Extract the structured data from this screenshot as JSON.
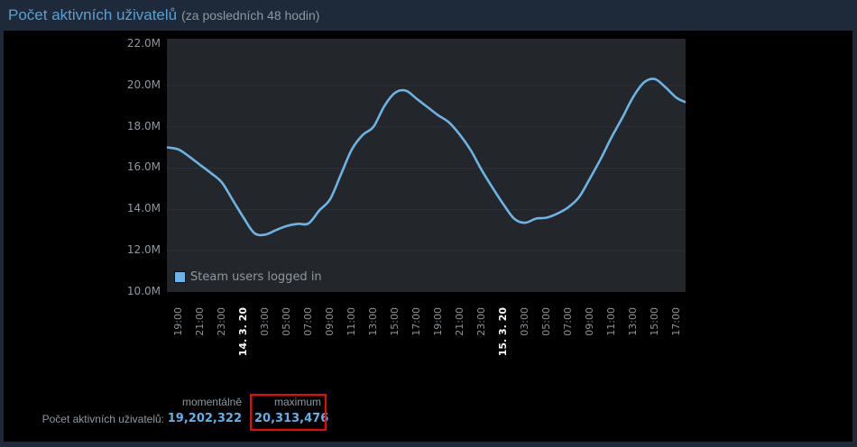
{
  "header": {
    "title": "Počet aktivních uživatelů",
    "subtitle": "(za posledních 48 hodin)"
  },
  "chart_data": {
    "type": "line",
    "title": "Počet aktivních uživatelů (za posledních 48 hodin)",
    "xlabel": "",
    "ylabel": "",
    "unit": "millions of users",
    "ylim": [
      10.0,
      22.26
    ],
    "y_ticks": [
      "22.0M",
      "20.0M",
      "18.0M",
      "16.0M",
      "14.0M",
      "12.0M",
      "10.0M"
    ],
    "gridline_values": [
      20,
      18,
      16,
      14,
      12
    ],
    "grid": "horizontal-only",
    "legend_position": "bottom-left-inside",
    "x_ticks": [
      {
        "label": "19:00",
        "bold": false
      },
      {
        "label": "21:00",
        "bold": false
      },
      {
        "label": "23:00",
        "bold": false
      },
      {
        "label": "14. 3. 20",
        "bold": true
      },
      {
        "label": "03:00",
        "bold": false
      },
      {
        "label": "05:00",
        "bold": false
      },
      {
        "label": "07:00",
        "bold": false
      },
      {
        "label": "09:00",
        "bold": false
      },
      {
        "label": "11:00",
        "bold": false
      },
      {
        "label": "13:00",
        "bold": false
      },
      {
        "label": "15:00",
        "bold": false
      },
      {
        "label": "17:00",
        "bold": false
      },
      {
        "label": "19:00",
        "bold": false
      },
      {
        "label": "21:00",
        "bold": false
      },
      {
        "label": "23:00",
        "bold": false
      },
      {
        "label": "15. 3. 20",
        "bold": true
      },
      {
        "label": "03:00",
        "bold": false
      },
      {
        "label": "05:00",
        "bold": false
      },
      {
        "label": "07:00",
        "bold": false
      },
      {
        "label": "09:00",
        "bold": false
      },
      {
        "label": "11:00",
        "bold": false
      },
      {
        "label": "13:00",
        "bold": false
      },
      {
        "label": "15:00",
        "bold": false
      },
      {
        "label": "17:00",
        "bold": false
      }
    ],
    "series": [
      {
        "name": "Steam users logged in",
        "color": "#6cb3e6",
        "points_format": "[hours_after_1800_day0, value_in_millions]",
        "points": [
          [
            0,
            17.0
          ],
          [
            1,
            16.9
          ],
          [
            2,
            16.55
          ],
          [
            3,
            16.15
          ],
          [
            4,
            15.75
          ],
          [
            5,
            15.3
          ],
          [
            6,
            14.45
          ],
          [
            7,
            13.6
          ],
          [
            8,
            12.85
          ],
          [
            9,
            12.78
          ],
          [
            10,
            13.0
          ],
          [
            11,
            13.2
          ],
          [
            12,
            13.3
          ],
          [
            13,
            13.32
          ],
          [
            14,
            13.95
          ],
          [
            15,
            14.5
          ],
          [
            16,
            15.7
          ],
          [
            17,
            16.9
          ],
          [
            18,
            17.6
          ],
          [
            19,
            18.0
          ],
          [
            20,
            19.0
          ],
          [
            21,
            19.65
          ],
          [
            22,
            19.75
          ],
          [
            23,
            19.35
          ],
          [
            24,
            18.95
          ],
          [
            25,
            18.55
          ],
          [
            26,
            18.2
          ],
          [
            27,
            17.6
          ],
          [
            28,
            16.85
          ],
          [
            29,
            15.9
          ],
          [
            30,
            15.05
          ],
          [
            31,
            14.25
          ],
          [
            32,
            13.55
          ],
          [
            33,
            13.35
          ],
          [
            34,
            13.55
          ],
          [
            35,
            13.6
          ],
          [
            36,
            13.8
          ],
          [
            37,
            14.1
          ],
          [
            38,
            14.6
          ],
          [
            39,
            15.5
          ],
          [
            40,
            16.45
          ],
          [
            41,
            17.5
          ],
          [
            42,
            18.45
          ],
          [
            43,
            19.45
          ],
          [
            44,
            20.15
          ],
          [
            45,
            20.31
          ],
          [
            46,
            19.9
          ],
          [
            47,
            19.4
          ],
          [
            47.8,
            19.2
          ]
        ]
      }
    ]
  },
  "legend": {
    "label": "Steam users logged in",
    "swatch_color": "#6cb3e6"
  },
  "stats": {
    "row_label": "Počet aktivních uživatelů:",
    "columns": [
      {
        "header": "momentálně",
        "value": "19,202,322",
        "highlighted": false
      },
      {
        "header": "maximum",
        "value": "20,313,476",
        "highlighted": true
      }
    ]
  },
  "colors": {
    "title_blue": "#57a0d5",
    "value_blue": "#61b1e8",
    "line_blue": "#6cb3e6",
    "highlight_red": "#fe0000",
    "frame_navy": "#1e2939",
    "panel_black": "#000000",
    "plot_bg": "#23262b",
    "gridline": "#2d3135",
    "text_gray": "#8f98a0",
    "axis_gray": "#8b9298",
    "date_white": "#ffffff"
  }
}
